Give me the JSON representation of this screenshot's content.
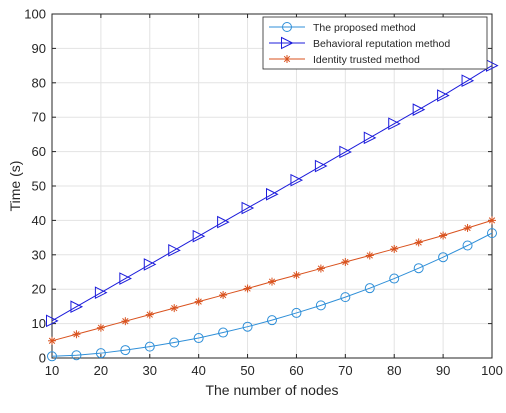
{
  "chart_data": {
    "type": "line",
    "xlabel": "The number of nodes",
    "ylabel": "Time (s)",
    "xlim": [
      10,
      100
    ],
    "ylim": [
      0,
      100
    ],
    "xticks": [
      10,
      20,
      30,
      40,
      50,
      60,
      70,
      80,
      90,
      100
    ],
    "yticks": [
      0,
      10,
      20,
      30,
      40,
      50,
      60,
      70,
      80,
      90,
      100
    ],
    "grid": true,
    "legend_position": "top-right",
    "x": [
      10,
      15,
      20,
      25,
      30,
      35,
      40,
      45,
      50,
      55,
      60,
      65,
      70,
      75,
      80,
      85,
      90,
      95,
      100
    ],
    "series": [
      {
        "name": "The proposed method",
        "marker": "circle",
        "color": "#2f8fd8",
        "values": [
          0.5,
          0.8,
          1.4,
          2.3,
          3.3,
          4.5,
          5.8,
          7.4,
          9.1,
          11.0,
          13.1,
          15.3,
          17.7,
          20.3,
          23.1,
          26.1,
          29.3,
          32.7,
          36.3
        ]
      },
      {
        "name": "Behavioral reputation method",
        "marker": "triangle-right",
        "color": "#1c1cdb",
        "values": [
          10.8,
          14.9,
          19.0,
          23.1,
          27.2,
          31.3,
          35.4,
          39.5,
          43.6,
          47.6,
          51.7,
          55.8,
          59.9,
          64.0,
          68.1,
          72.2,
          76.3,
          80.6,
          85.0
        ]
      },
      {
        "name": "Identity trusted method",
        "marker": "asterisk",
        "color": "#d9521e",
        "values": [
          5.0,
          6.9,
          8.8,
          10.7,
          12.6,
          14.5,
          16.4,
          18.3,
          20.2,
          22.2,
          24.1,
          26.0,
          27.9,
          29.8,
          31.7,
          33.6,
          35.6,
          37.8,
          40.0
        ]
      }
    ]
  }
}
